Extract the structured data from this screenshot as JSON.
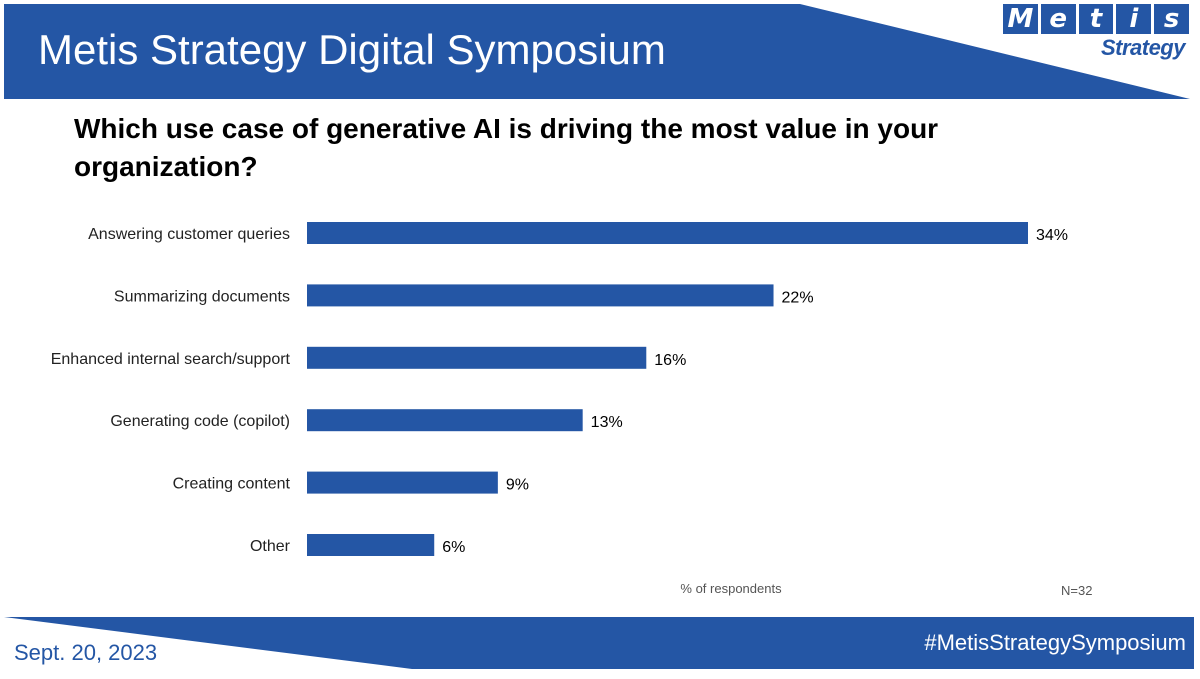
{
  "header": {
    "title": "Metis Strategy Digital Symposium"
  },
  "logo": {
    "letters": [
      "M",
      "e",
      "t",
      "i",
      "s"
    ],
    "subtitle": "Strategy",
    "icon": "metis-strategy-logo"
  },
  "colors": {
    "brand": "#2456a5",
    "bar": "#2456a5"
  },
  "chart_data": {
    "type": "bar",
    "orientation": "horizontal",
    "title": "Which use case of generative AI is driving the most value in your organization?",
    "categories": [
      "Answering customer queries",
      "Summarizing documents",
      "Enhanced internal search/support",
      "Generating code (copilot)",
      "Creating content",
      "Other"
    ],
    "values": [
      34,
      22,
      16,
      13,
      9,
      6
    ],
    "value_labels": [
      "34%",
      "22%",
      "16%",
      "13%",
      "9%",
      "6%"
    ],
    "xlabel": "% of respondents",
    "note": "N=32",
    "xlim": [
      0,
      34
    ],
    "grid": false
  },
  "footer": {
    "date": "Sept. 20, 2023",
    "hashtag": "#MetisStrategySymposium"
  }
}
